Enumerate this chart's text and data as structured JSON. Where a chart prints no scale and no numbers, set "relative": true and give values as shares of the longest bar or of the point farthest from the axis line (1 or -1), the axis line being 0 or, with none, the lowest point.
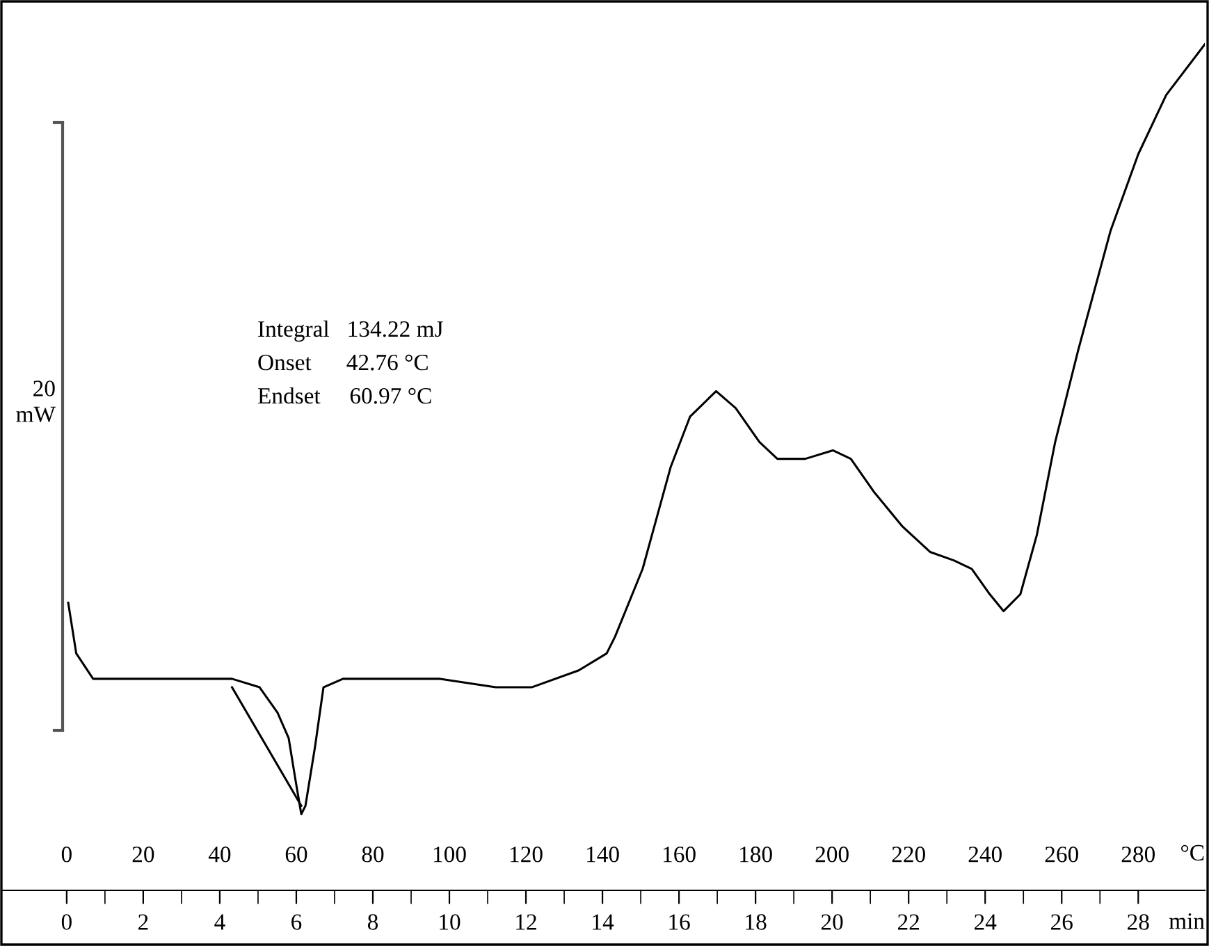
{
  "chart_data": {
    "type": "line",
    "relative": true,
    "xlabel": "°C",
    "x2label": "min",
    "xlim": [
      -16.7,
      297.4
    ],
    "xticks": [
      0,
      {
        "value": 10,
        "label": null
      },
      20,
      {
        "value": 30,
        "label": null
      },
      40,
      {
        "value": 50,
        "label": null
      },
      60,
      {
        "value": 70,
        "label": null
      },
      80,
      {
        "value": 90,
        "label": null
      },
      100,
      {
        "value": 110,
        "label": null
      },
      120,
      {
        "value": 130,
        "label": null
      },
      140,
      {
        "value": 150,
        "label": null
      },
      160,
      {
        "value": 170,
        "label": null
      },
      180,
      {
        "value": 190,
        "label": null
      },
      200,
      {
        "value": 210,
        "label": null
      },
      220,
      {
        "value": 230,
        "label": null
      },
      240,
      {
        "value": 250,
        "label": null
      },
      260,
      {
        "value": 270,
        "label": null
      },
      280
    ],
    "x2lim": [
      -1.67,
      29.74
    ],
    "x2ticks": [
      0,
      2,
      4,
      6,
      8,
      10,
      12,
      14,
      16,
      18,
      20,
      22,
      24,
      26,
      28
    ],
    "legend": false,
    "series": [
      {
        "color": "#000000",
        "x": [
          0.4,
          2.5,
          6.9,
          14.1,
          39.5,
          43.2,
          50.4,
          55.1,
          58.0,
          59.8,
          61.3,
          62.4,
          64.9,
          67.1,
          72.2,
          85.2,
          97.6,
          112.1,
          121.5,
          133.8,
          141.1,
          143.3,
          150.5,
          157.8,
          162.9,
          169.7,
          174.8,
          181.0,
          185.7,
          193.0,
          200.2,
          204.9,
          211.1,
          218.4,
          225.6,
          231.8,
          236.5,
          241.2,
          244.8,
          249.2,
          253.5,
          258.3,
          264.4,
          272.8,
          280.0,
          287.3,
          297.4
        ],
        "values": [
          0.34,
          0.28,
          0.25,
          0.25,
          0.25,
          0.25,
          0.24,
          0.21,
          0.18,
          0.13,
          0.09,
          0.1,
          0.17,
          0.24,
          0.25,
          0.25,
          0.25,
          0.24,
          0.24,
          0.26,
          0.28,
          0.3,
          0.38,
          0.5,
          0.56,
          0.59,
          0.57,
          0.53,
          0.51,
          0.51,
          0.52,
          0.51,
          0.47,
          0.43,
          0.4,
          0.39,
          0.38,
          0.35,
          0.33,
          0.35,
          0.42,
          0.53,
          0.64,
          0.78,
          0.87,
          0.94,
          1
        ]
      },
      {
        "type": "line",
        "color": "#000000",
        "x": [
          43.2,
          61.3
        ],
        "values": [
          0.24,
          0.1
        ]
      }
    ],
    "annotations": [
      "20\nmW",
      "Integral   134.22 mJ",
      "Onset      42.76 °C",
      "Endset     60.97 °C"
    ]
  }
}
